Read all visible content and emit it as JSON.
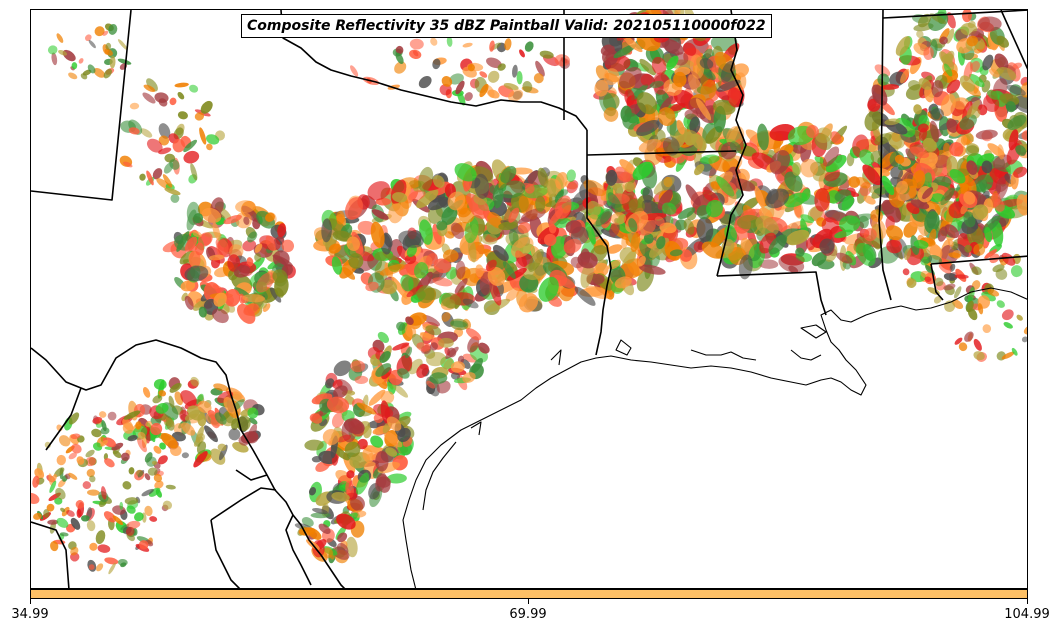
{
  "title": "Composite Reflectivity 35 dBZ Paintball Valid: 202105110000f022",
  "colorbar": {
    "color": "#fdc066",
    "ticks": [
      "34.99",
      "69.99",
      "104.99"
    ]
  },
  "paintball_colors": [
    "#e31a1c",
    "#f07f00",
    "#ff9a3c",
    "#a3393d",
    "#7f8a1e",
    "#2ecc2e",
    "#3a8f3a",
    "#4d4d4d",
    "#b5a33a",
    "#ff5a3c"
  ],
  "map_layers": [
    "state-borders",
    "coastline",
    "reflectivity-paintball"
  ]
}
